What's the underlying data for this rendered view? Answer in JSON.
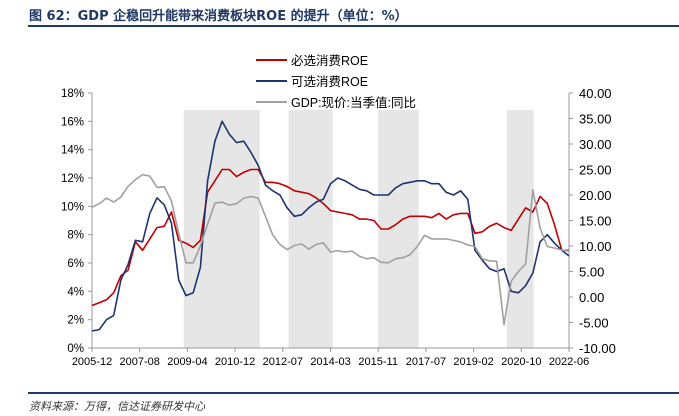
{
  "title": "图 62：GDP 企稳回升能带来消费板块ROE 的提升（单位：%）",
  "source": "资料来源：万得，信达证券研发中心",
  "chart_data": {
    "type": "line",
    "title": "GDP 企稳回升能带来消费板块ROE 的提升（单位：%）",
    "x_start": "2005-12",
    "x_end": "2022-06",
    "x_frequency": "quarterly",
    "x_tick_labels": [
      "2005-12",
      "2007-08",
      "2009-04",
      "2010-12",
      "2012-07",
      "2014-03",
      "2015-11",
      "2017-07",
      "2019-02",
      "2020-10",
      "2022-06"
    ],
    "left_axis": {
      "min": 0,
      "max": 18,
      "step": 2,
      "tick_labels": [
        "0%",
        "2%",
        "4%",
        "6%",
        "8%",
        "10%",
        "12%",
        "14%",
        "16%",
        "18%"
      ]
    },
    "right_axis": {
      "min": -10,
      "max": 40,
      "step": 5,
      "tick_labels": [
        "-10.00",
        "-5.00",
        "0.00",
        "5.00",
        "10.00",
        "15.00",
        "20.00",
        "25.00",
        "30.00",
        "35.00",
        "40.00"
      ]
    },
    "legend_position": "top-center",
    "shaded_periods": [
      [
        12.7,
        23.2
      ],
      [
        27.2,
        33.3
      ],
      [
        39.6,
        45.2
      ],
      [
        57.4,
        61.1
      ]
    ],
    "shading_color": "#e6e6e6",
    "series": [
      {
        "name": "必选消费ROE",
        "axis": "left",
        "color": "#c00000",
        "values": [
          3.0,
          3.2,
          3.4,
          3.9,
          5.1,
          5.5,
          7.5,
          6.9,
          7.7,
          8.5,
          8.6,
          9.6,
          7.6,
          7.4,
          7.1,
          7.6,
          11.0,
          11.8,
          12.6,
          12.6,
          12.1,
          12.4,
          12.6,
          12.6,
          11.7,
          11.7,
          11.6,
          11.4,
          11.1,
          11.0,
          10.9,
          10.6,
          10.2,
          9.7,
          9.6,
          9.5,
          9.4,
          9.1,
          9.1,
          9.0,
          8.4,
          8.4,
          8.7,
          9.1,
          9.3,
          9.3,
          9.3,
          9.2,
          9.5,
          9.1,
          9.4,
          9.5,
          9.5,
          8.1,
          8.2,
          8.6,
          8.8,
          8.5,
          8.3,
          9.1,
          9.9,
          9.6,
          10.7,
          10.2,
          8.7,
          6.9,
          6.9
        ]
      },
      {
        "name": "可选消费ROE",
        "axis": "left",
        "color": "#1f3470",
        "values": [
          1.2,
          1.3,
          2.0,
          2.3,
          4.8,
          5.9,
          7.6,
          7.5,
          9.5,
          10.6,
          10.1,
          8.8,
          4.8,
          3.7,
          3.9,
          5.7,
          11.8,
          14.6,
          16.0,
          15.1,
          14.5,
          14.6,
          13.8,
          12.9,
          11.5,
          11.1,
          10.8,
          9.9,
          9.3,
          9.4,
          9.9,
          10.3,
          10.5,
          11.6,
          12.0,
          11.8,
          11.5,
          11.2,
          11.1,
          10.8,
          10.8,
          10.8,
          11.3,
          11.6,
          11.7,
          11.8,
          11.8,
          11.6,
          11.6,
          11.0,
          10.8,
          11.1,
          10.5,
          6.9,
          6.2,
          5.6,
          5.4,
          5.6,
          4.0,
          3.9,
          4.4,
          5.3,
          7.5,
          8.0,
          7.4,
          6.9,
          6.5
        ]
      },
      {
        "name": "GDP:现价:当季值:同比",
        "axis": "right",
        "color": "#a0a0a0",
        "values": [
          17.6,
          18.3,
          19.4,
          18.6,
          19.6,
          21.7,
          23.0,
          24.0,
          23.7,
          21.5,
          21.6,
          18.8,
          12.5,
          6.7,
          6.7,
          10.0,
          14.3,
          18.4,
          18.6,
          18.0,
          18.3,
          19.4,
          19.7,
          19.4,
          15.8,
          12.2,
          10.3,
          9.3,
          10.1,
          10.4,
          9.4,
          10.3,
          10.6,
          8.8,
          9.1,
          8.8,
          9.0,
          8.0,
          7.5,
          7.7,
          6.8,
          6.7,
          7.5,
          7.7,
          8.3,
          9.9,
          12.1,
          11.4,
          11.4,
          11.4,
          11.1,
          10.8,
          10.2,
          9.9,
          7.5,
          7.1,
          7.0,
          -5.4,
          3.1,
          5.0,
          6.5,
          21.0,
          13.5,
          9.9,
          9.6,
          9.2,
          9.0
        ]
      }
    ]
  }
}
